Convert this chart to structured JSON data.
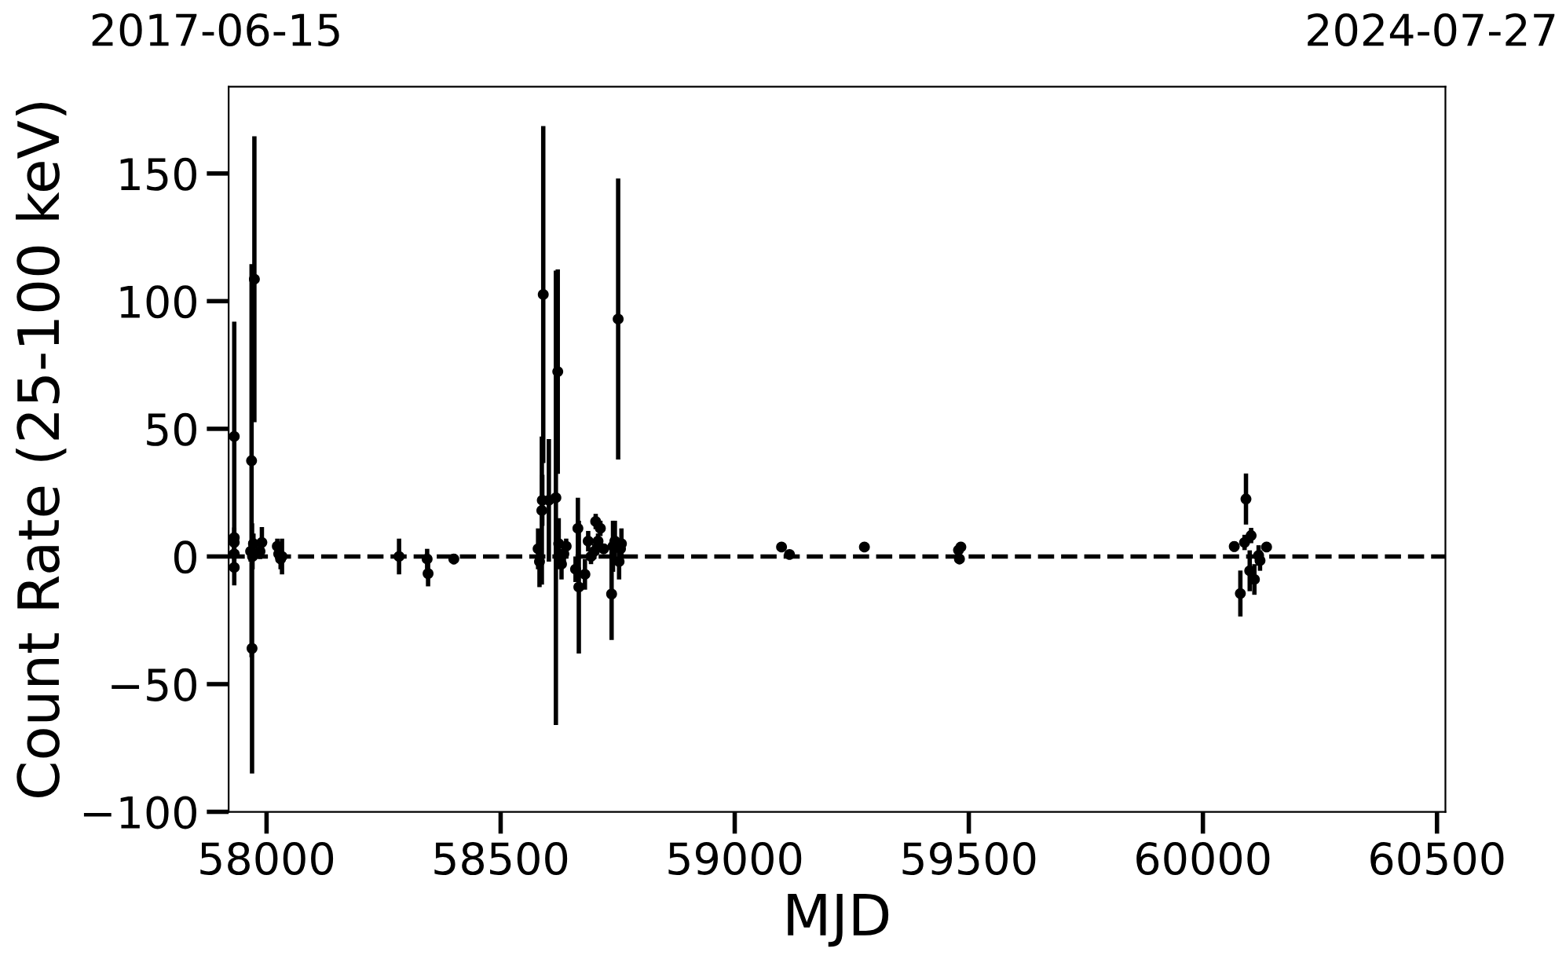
{
  "chart_data": {
    "type": "scatter",
    "xlabel": "MJD",
    "ylabel": "Count Rate (25-100 keV)",
    "annotations": [
      "2017-06-15",
      "2024-07-27"
    ],
    "xlim": [
      57919,
      60518
    ],
    "xticks": [
      58000,
      58500,
      59000,
      59500,
      60000,
      60500
    ],
    "ylim": [
      -100,
      184
    ],
    "yticks": [
      -100,
      -50,
      0,
      50,
      100,
      150
    ],
    "grid": false,
    "legend": false,
    "marker": "circle",
    "ref_lines": [
      {
        "axis": "y",
        "value": 0,
        "color": "#000000",
        "line_style": "dashed"
      }
    ],
    "series": [
      {
        "color": "#000000",
        "x": [
          57931,
          57931,
          57931,
          57931,
          57931,
          57966,
          57968,
          57969,
          57970,
          57972,
          57974,
          57990,
          57986,
          58023,
          58026,
          58030,
          58033,
          58283,
          58343,
          58345,
          58400,
          58580,
          58583,
          58588,
          58589,
          58591,
          58603,
          58618,
          58622,
          58624,
          58630,
          58635,
          58640,
          58660,
          58665,
          58667,
          58680,
          58687,
          58693,
          58700,
          58703,
          58708,
          58713,
          58720,
          58737,
          58740,
          58744,
          58751,
          58753,
          58756,
          58758,
          59100,
          59117,
          59277,
          59478,
          59483,
          59480,
          60067,
          60080,
          60089,
          60092,
          60100,
          60103,
          60110,
          60119,
          60122,
          60136
        ],
        "values": [
          47,
          7.4,
          5.5,
          1,
          -4.3,
          2,
          37.5,
          -36,
          0,
          5,
          108.6,
          5.5,
          2,
          4,
          1,
          -1,
          0,
          0,
          -1,
          -6.7,
          -1,
          3,
          -2,
          18,
          22,
          102.6,
          22,
          23,
          72.4,
          5,
          -3,
          1,
          4,
          -5,
          11,
          -12,
          -7,
          6,
          0,
          2,
          13.7,
          6,
          11,
          3,
          -14.7,
          4,
          6,
          93,
          -2,
          3,
          5,
          3.7,
          0.8,
          3.7,
          2.5,
          3.7,
          -1,
          3.9,
          -14.5,
          5.5,
          22.5,
          -5.6,
          8.2,
          -9,
          0.4,
          -1.6,
          3.7
        ],
        "errors": [
          45,
          4,
          4,
          5,
          7,
          4,
          77,
          49,
          5,
          4,
          56,
          6,
          3,
          3,
          3,
          4,
          7,
          7,
          4,
          5,
          2,
          8,
          10,
          29,
          10,
          66,
          24,
          89,
          40,
          10,
          6,
          3,
          3,
          5,
          12,
          26,
          6,
          4,
          3,
          3,
          3,
          3,
          3,
          2,
          18,
          10,
          8,
          55,
          7,
          4,
          6,
          1.5,
          1.5,
          1,
          1.5,
          2,
          1.5,
          2,
          9,
          3,
          10,
          8,
          3,
          6,
          4,
          4,
          2
        ]
      }
    ]
  }
}
